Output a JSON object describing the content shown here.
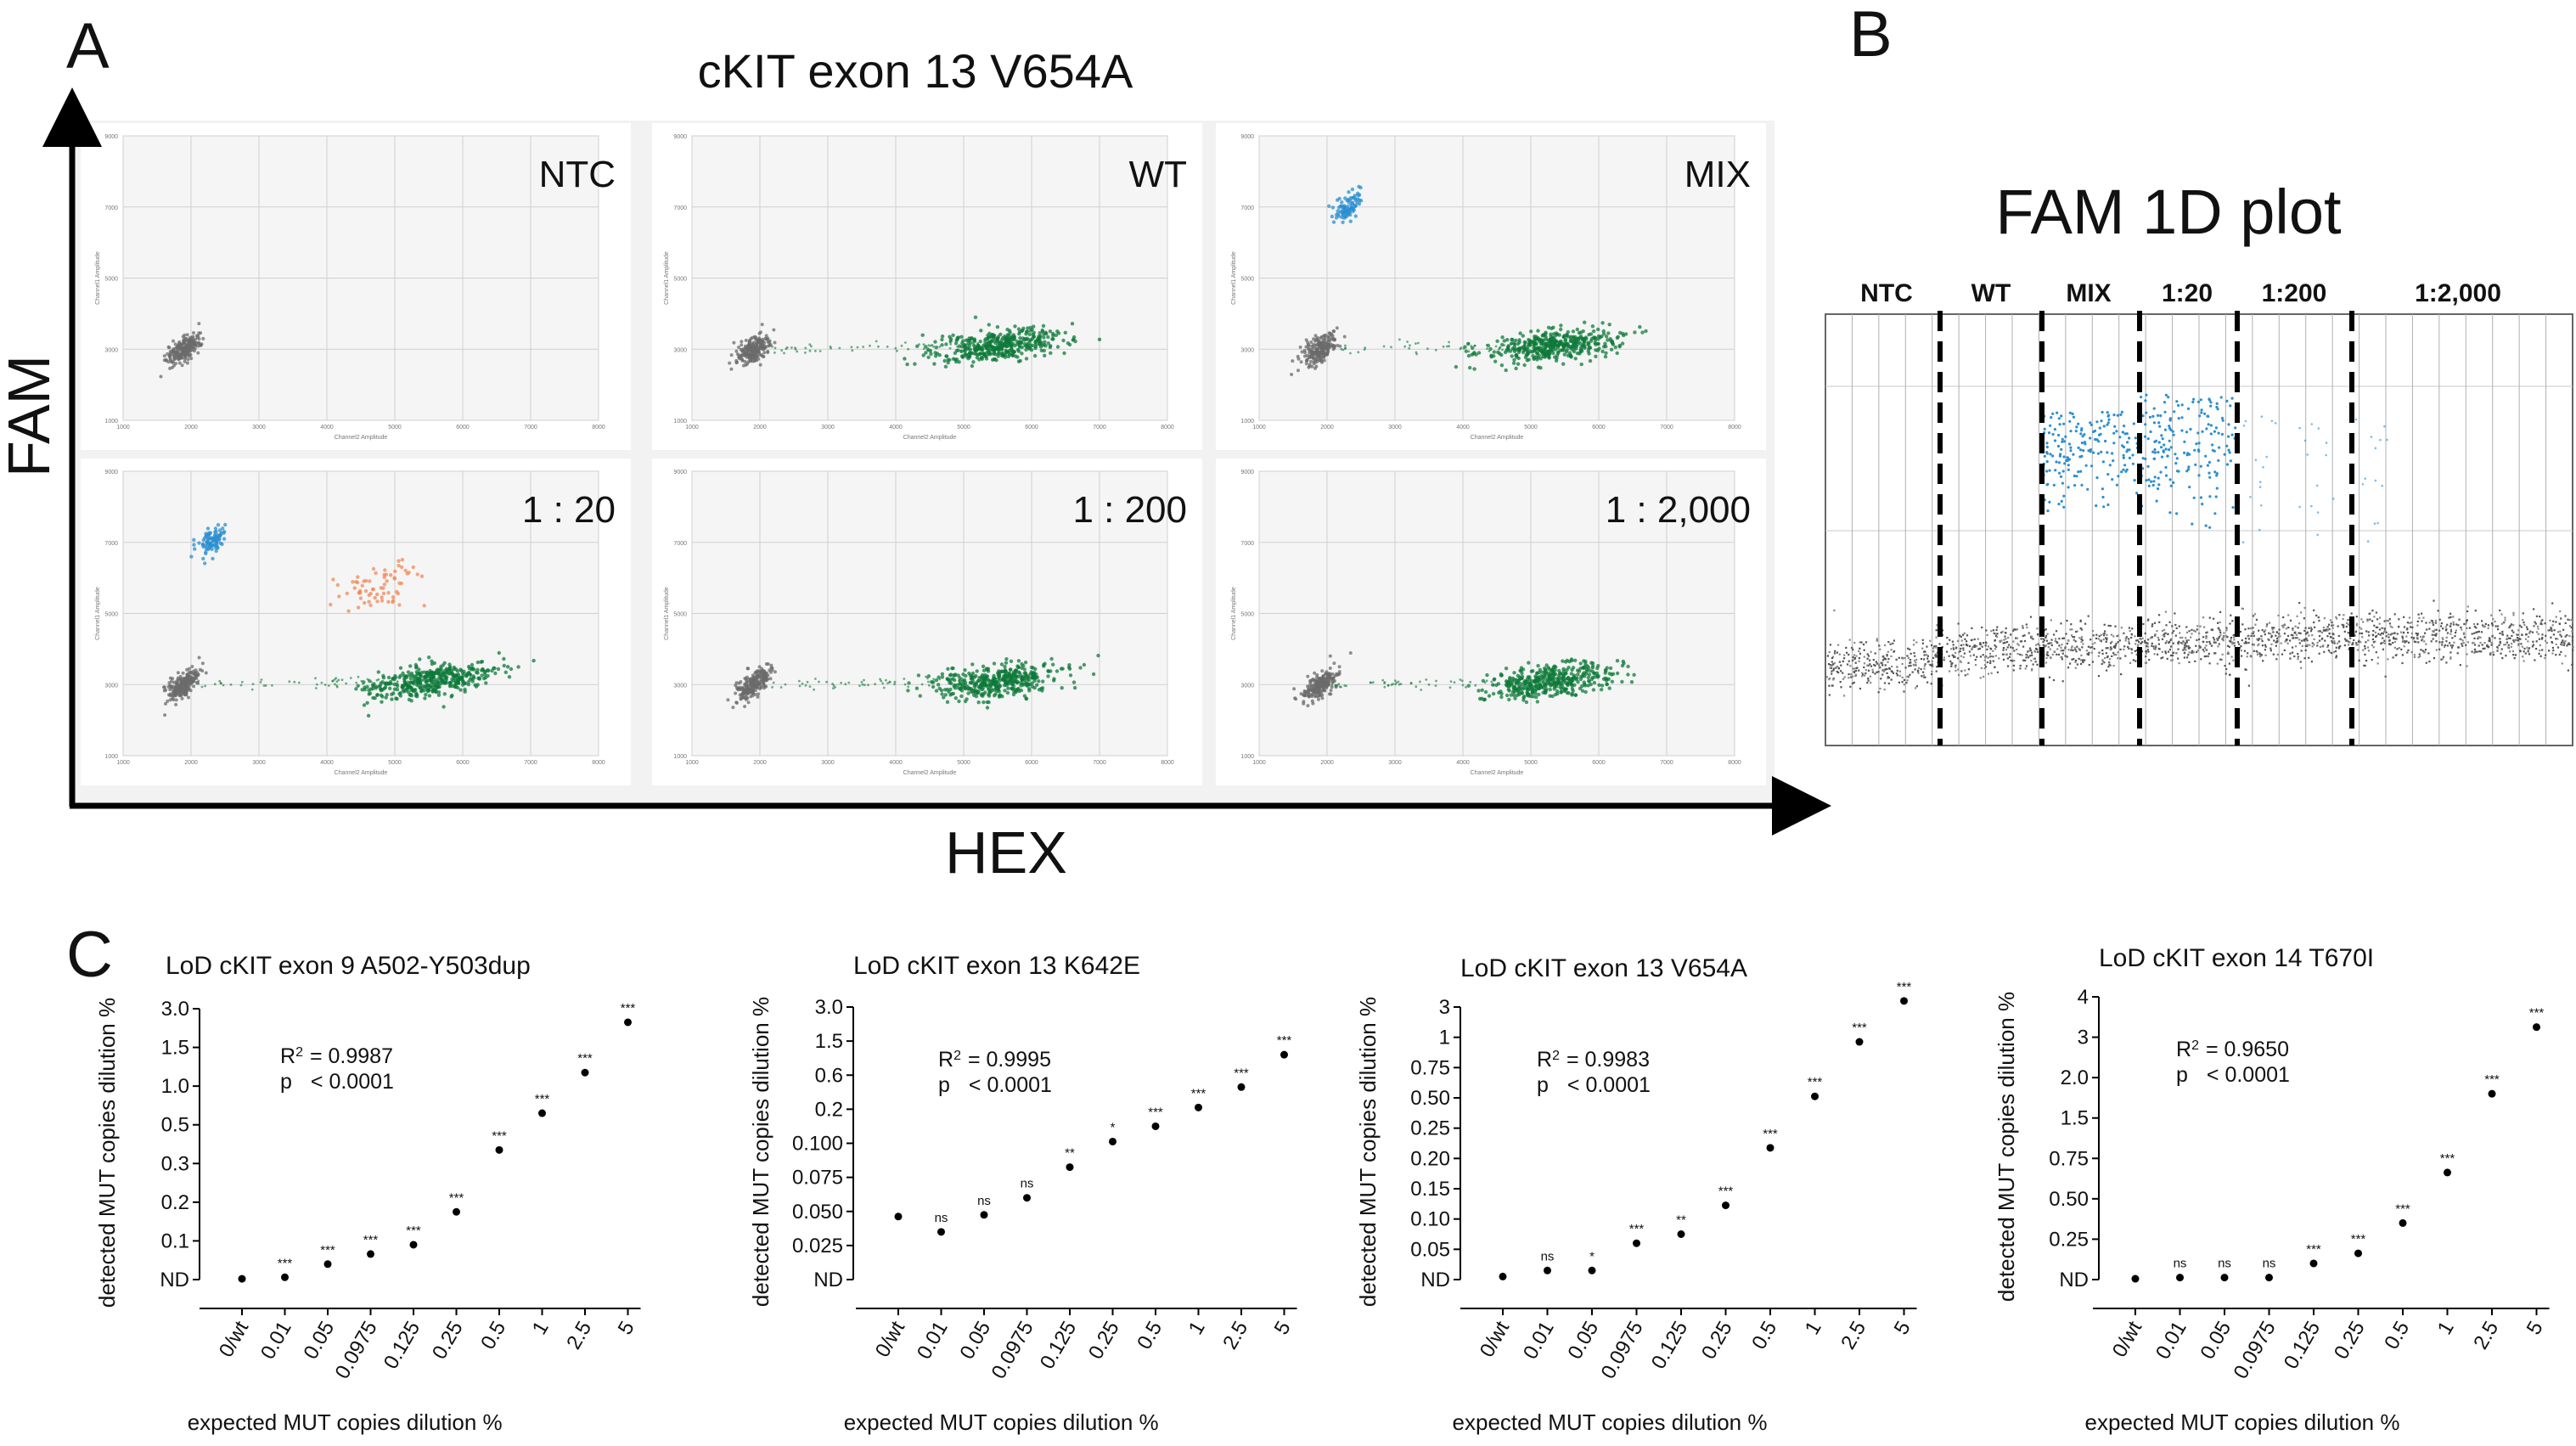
{
  "panel_a": {
    "letter": "A",
    "title": "cKIT exon 13 V654A",
    "y_axis_label": "FAM",
    "x_axis_label": "HEX",
    "channel1_label": "Channel1 Amplitude",
    "channel2_label": "Channel2 Amplitude",
    "y_ticks": [
      "9000",
      "7000",
      "5000",
      "3000",
      "1000"
    ],
    "x_ticks": [
      "1000",
      "2000",
      "3000",
      "4000",
      "5000",
      "6000",
      "7000",
      "8000"
    ]
  },
  "panel_b": {
    "letter": "B",
    "title": "FAM 1D plot",
    "lanes": [
      "NTC",
      "WT",
      "MIX",
      "1:20",
      "1:200",
      "1:2,000"
    ]
  },
  "panel_c": {
    "letter": "C",
    "x_axis_label": "expected  MUT copies dilution %",
    "y_axis_label": "detected MUT copies dilution %"
  },
  "colors": {
    "negative": "#6b6b6b",
    "hex_positive": "#0d7a3a",
    "fam_positive": "#2b8fd0",
    "double_positive": "#f08a5a",
    "plot_bg": "#f5f5f5",
    "grid": "#d0d0d0"
  },
  "chart_data": [
    {
      "type": "scatter",
      "title": "NTC",
      "xlabel": "Channel2 Amplitude",
      "ylabel": "Channel1 Amplitude",
      "xlim": [
        1000,
        8000
      ],
      "ylim": [
        1000,
        9000
      ],
      "clusters": [
        {
          "name": "negative",
          "x": 1900,
          "y": 3000
        }
      ]
    },
    {
      "type": "scatter",
      "title": "WT",
      "xlabel": "Channel2 Amplitude",
      "ylabel": "Channel1 Amplitude",
      "xlim": [
        1000,
        8000
      ],
      "ylim": [
        1000,
        9000
      ],
      "clusters": [
        {
          "name": "negative",
          "x": 1900,
          "y": 3000
        },
        {
          "name": "HEX positive",
          "x": 5500,
          "y": 3100
        }
      ]
    },
    {
      "type": "scatter",
      "title": "MIX",
      "xlabel": "Channel2 Amplitude",
      "ylabel": "Channel1 Amplitude",
      "xlim": [
        1000,
        8000
      ],
      "ylim": [
        1000,
        9000
      ],
      "clusters": [
        {
          "name": "negative",
          "x": 1900,
          "y": 3000
        },
        {
          "name": "FAM positive",
          "x": 2300,
          "y": 7000
        },
        {
          "name": "HEX positive",
          "x": 5300,
          "y": 3100
        }
      ]
    },
    {
      "type": "scatter",
      "title": "1 : 20",
      "xlabel": "Channel2 Amplitude",
      "ylabel": "Channel1 Amplitude",
      "xlim": [
        1000,
        8000
      ],
      "ylim": [
        1000,
        9000
      ],
      "clusters": [
        {
          "name": "negative",
          "x": 1900,
          "y": 3000
        },
        {
          "name": "FAM positive",
          "x": 2300,
          "y": 7000
        },
        {
          "name": "double positive",
          "x": 4800,
          "y": 5800
        },
        {
          "name": "HEX positive",
          "x": 5500,
          "y": 3100
        }
      ]
    },
    {
      "type": "scatter",
      "title": "1 : 200",
      "xlabel": "Channel2 Amplitude",
      "ylabel": "Channel1 Amplitude",
      "xlim": [
        1000,
        8000
      ],
      "ylim": [
        1000,
        9000
      ],
      "clusters": [
        {
          "name": "negative",
          "x": 1900,
          "y": 3000
        },
        {
          "name": "HEX positive",
          "x": 5500,
          "y": 3100
        }
      ]
    },
    {
      "type": "scatter",
      "title": "1 : 2,000",
      "xlabel": "Channel2 Amplitude",
      "ylabel": "Channel1 Amplitude",
      "xlim": [
        1000,
        8000
      ],
      "ylim": [
        1000,
        9000
      ],
      "clusters": [
        {
          "name": "negative",
          "x": 1900,
          "y": 3000
        },
        {
          "name": "HEX positive",
          "x": 5300,
          "y": 3100
        }
      ]
    },
    {
      "type": "scatter",
      "title": "LoD cKIT exon 9 A502-Y503dup",
      "xlabel": "expected  MUT copies dilution %",
      "ylabel": "detected MUT copies dilution %",
      "categories": [
        "0/wt",
        "0.01",
        "0.05",
        "0.0975",
        "0.125",
        "0.25",
        "0.5",
        "1",
        "2.5",
        "5"
      ],
      "yticks": [
        "ND",
        "0.1",
        "0.2",
        "0.3",
        "0.5",
        "1.0",
        "1.5",
        "3.0"
      ],
      "point_ranks": [
        0.02,
        0.06,
        0.4,
        0.66,
        0.9,
        1.75,
        3.35,
        4.3,
        5.35,
        6.65
      ],
      "significance": [
        "",
        "***",
        "***",
        "***",
        "***",
        "***",
        "***",
        "***",
        "***",
        "***"
      ],
      "r2": "= 0.9987",
      "p": "< 0.0001"
    },
    {
      "type": "scatter",
      "title": "LoD cKIT exon 13 K642E",
      "xlabel": "expected  MUT copies dilution %",
      "ylabel": "detected MUT copies dilution %",
      "categories": [
        "0/wt",
        "0.01",
        "0.05",
        "0.0975",
        "0.125",
        "0.25",
        "0.5",
        "1",
        "2.5",
        "5"
      ],
      "yticks": [
        "ND",
        "0.025",
        "0.050",
        "0.075",
        "0.100",
        "0.2",
        "0.6",
        "1.5",
        "3.0"
      ],
      "point_ranks": [
        1.85,
        1.4,
        1.9,
        2.4,
        3.3,
        4.05,
        4.5,
        5.05,
        5.65,
        6.6
      ],
      "significance": [
        "",
        "ns",
        "ns",
        "ns",
        "**",
        "*",
        "***",
        "***",
        "***",
        "***"
      ],
      "r2": "= 0.9995",
      "p": "< 0.0001"
    },
    {
      "type": "scatter",
      "title": "LoD cKIT exon 13 V654A",
      "xlabel": "expected  MUT copies dilution %",
      "ylabel": "detected MUT copies dilution %",
      "categories": [
        "0/wt",
        "0.01",
        "0.05",
        "0.0975",
        "0.125",
        "0.25",
        "0.5",
        "1",
        "2.5",
        "5"
      ],
      "yticks": [
        "ND",
        "0.05",
        "0.10",
        "0.15",
        "0.20",
        "0.25",
        "0.50",
        "0.75",
        "1",
        "3"
      ],
      "point_ranks": [
        0.1,
        0.3,
        0.3,
        1.2,
        1.5,
        2.45,
        4.35,
        6.05,
        7.85,
        9.2
      ],
      "significance": [
        "",
        "ns",
        "*",
        "***",
        "**",
        "***",
        "***",
        "***",
        "***",
        "***"
      ],
      "r2": "= 0.9983",
      "p": "< 0.0001"
    },
    {
      "type": "scatter",
      "title": "LoD cKIT exon 14 T670I",
      "xlabel": "expected  MUT copies dilution %",
      "ylabel": "detected MUT copies dilution %",
      "categories": [
        "0/wt",
        "0.01",
        "0.05",
        "0.0975",
        "0.125",
        "0.25",
        "0.5",
        "1",
        "2.5",
        "5"
      ],
      "yticks": [
        "ND",
        "0.25",
        "0.50",
        "0.75",
        "1.5",
        "2.0",
        "3",
        "4"
      ],
      "point_ranks": [
        0.02,
        0.05,
        0.05,
        0.05,
        0.4,
        0.65,
        1.4,
        2.65,
        4.6,
        6.25
      ],
      "significance": [
        "",
        "ns",
        "ns",
        "ns",
        "***",
        "***",
        "***",
        "***",
        "***",
        "***"
      ],
      "r2": "= 0.9650",
      "p": "< 0.0001"
    }
  ]
}
